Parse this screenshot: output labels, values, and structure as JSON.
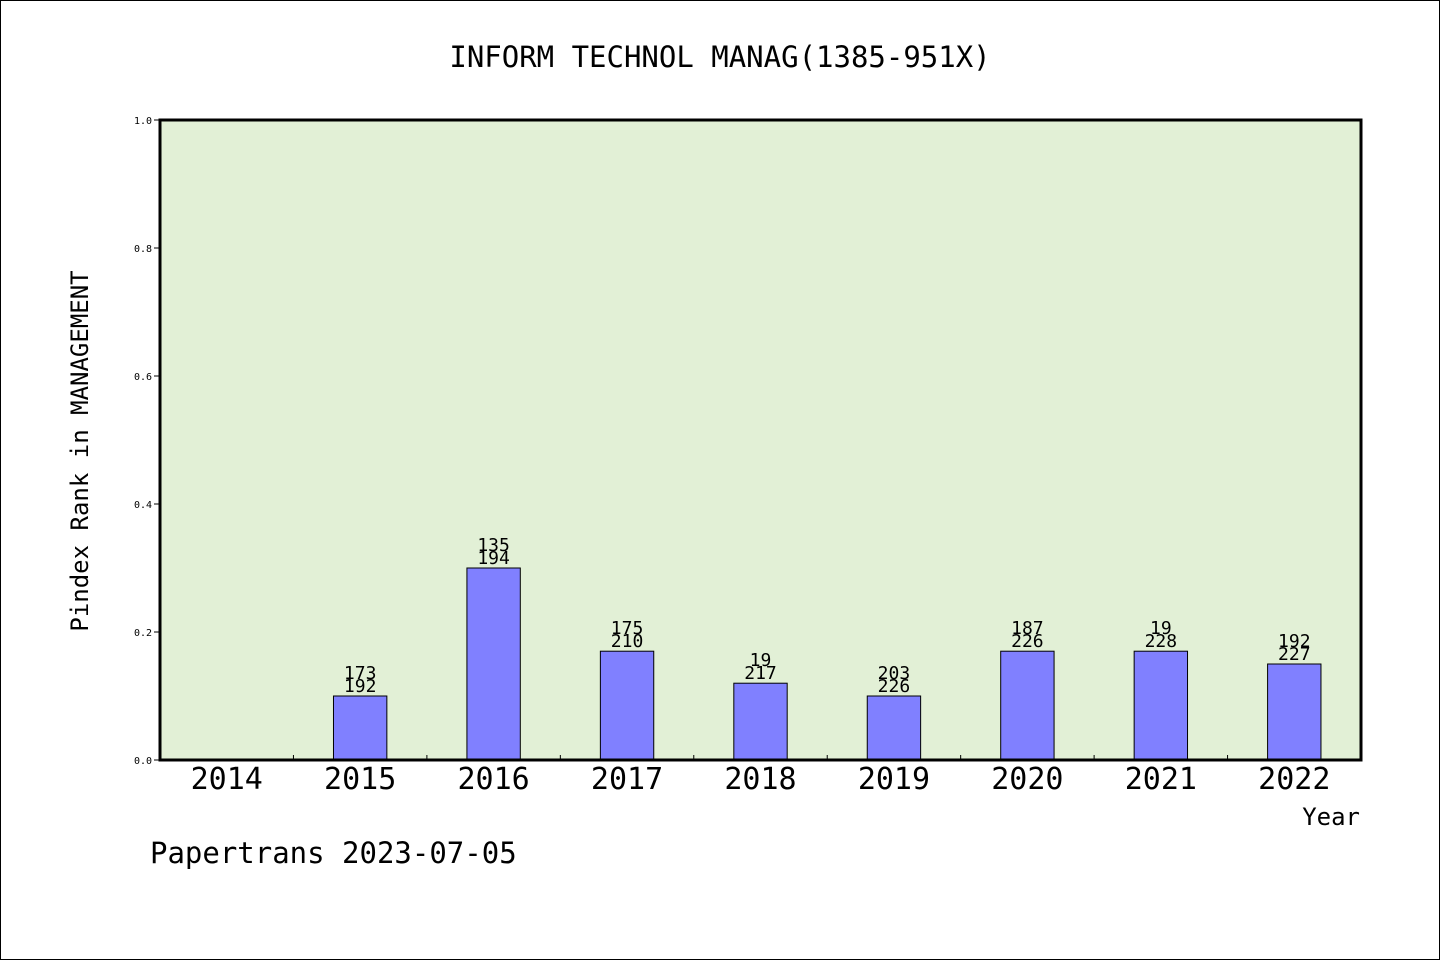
{
  "chart_data": {
    "type": "bar",
    "title": "INFORM TECHNOL MANAG(1385-951X)",
    "xlabel": "Year",
    "ylabel": "Pindex Rank in MANAGEMENT",
    "categories": [
      "2014",
      "2015",
      "2016",
      "2017",
      "2018",
      "2019",
      "2020",
      "2021",
      "2022"
    ],
    "values": [
      0,
      0.1,
      0.3,
      0.17,
      0.12,
      0.1,
      0.17,
      0.17,
      0.15
    ],
    "labels_top": [
      "",
      "173",
      "135",
      "175",
      "19",
      "203",
      "187",
      "19",
      "192"
    ],
    "labels_bottom": [
      "",
      "192",
      "194",
      "210",
      "217",
      "226",
      "226",
      "228",
      "227"
    ],
    "ylim": [
      0,
      1.0
    ],
    "yticks": [
      "0.0",
      "0.2",
      "0.4",
      "0.6",
      "0.8",
      "1.0"
    ],
    "grid": false,
    "colors": {
      "bar": "#8080ff",
      "plot_background": "#e2f0d6",
      "axes": "#000000"
    }
  },
  "footer": "Papertrans 2023-07-05"
}
